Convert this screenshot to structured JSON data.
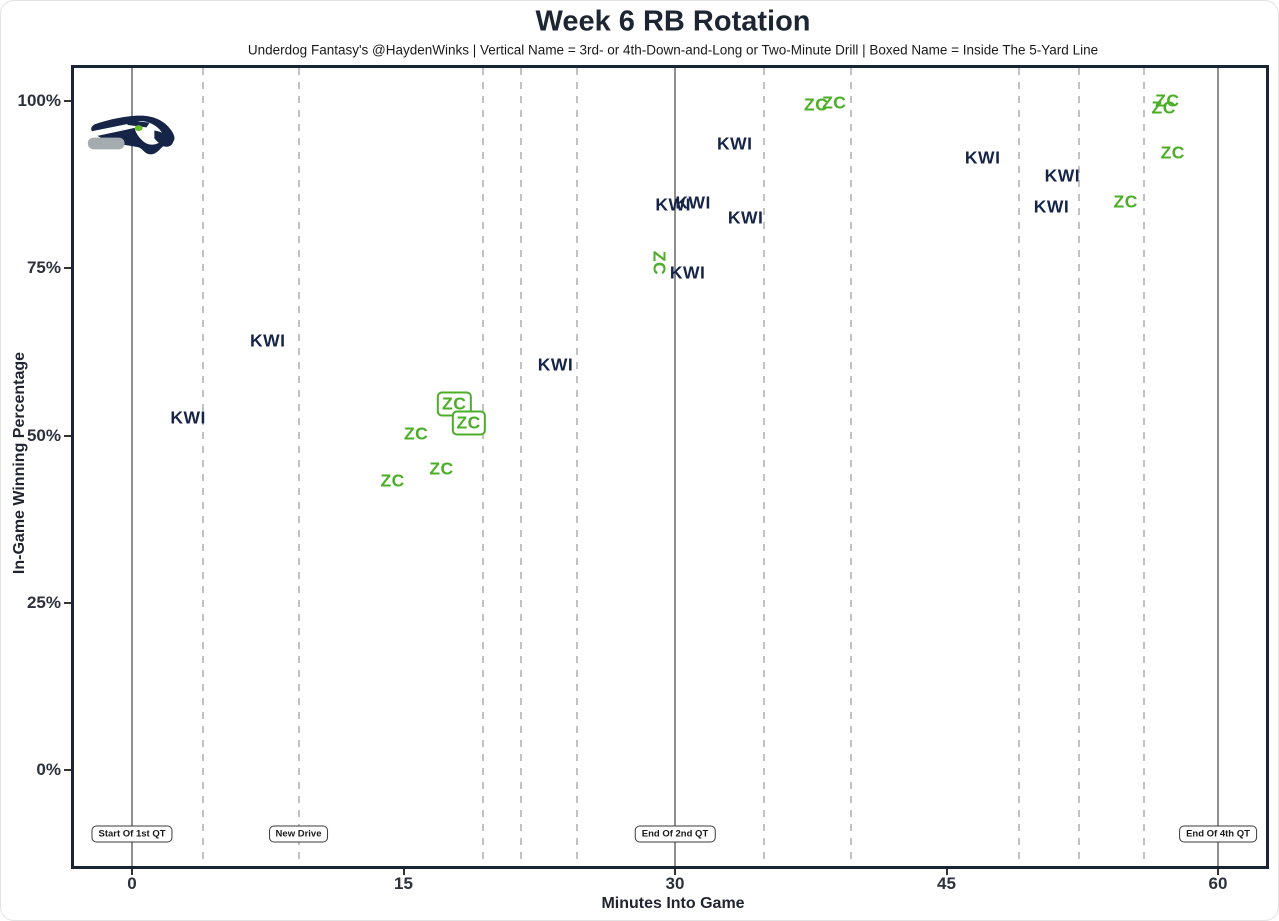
{
  "title": "Week 6 RB Rotation",
  "subtitle": "Underdog Fantasy's @HaydenWinks | Vertical Name = 3rd- or 4th-Down-and-Long or Two-Minute Drill | Boxed Name = Inside The 5-Yard Line",
  "team_logo": "seattle-seahawks-logo",
  "colors": {
    "navy": "#152447",
    "green": "#4bae27",
    "panel_border": "#1b2434",
    "solid_line": "#8f8f8f",
    "dashed_line": "#c2c2c2",
    "logo_gray": "#a5acaf",
    "logo_eye_green": "#69be28"
  },
  "chart_data": {
    "type": "scatter",
    "title": "Week 6 RB Rotation",
    "xlabel": "Minutes Into Game",
    "ylabel": "In-Game Winning Percentage",
    "xlim": [
      -3.4,
      62.8
    ],
    "ylim": [
      -14.8,
      105.4
    ],
    "grid": "vertical-only",
    "legend_position": "none",
    "x_ticks": [
      {
        "label": "0",
        "value": 0
      },
      {
        "label": "15",
        "value": 15
      },
      {
        "label": "30",
        "value": 30
      },
      {
        "label": "45",
        "value": 45
      },
      {
        "label": "60",
        "value": 60
      }
    ],
    "y_ticks": [
      {
        "label": "0%",
        "value": 0
      },
      {
        "label": "25%",
        "value": 25
      },
      {
        "label": "50%",
        "value": 50
      },
      {
        "label": "75%",
        "value": 75
      },
      {
        "label": "100%",
        "value": 100
      }
    ],
    "solid_vlines": [
      0,
      30,
      60
    ],
    "dashed_vlines": [
      3.9,
      9.2,
      19.4,
      21.5,
      24.6,
      34.9,
      39.7,
      49.0,
      52.3,
      55.9
    ],
    "series": [
      {
        "name": "KWI",
        "color": "#152447",
        "points": [
          {
            "x": 3.1,
            "y": 52.6
          },
          {
            "x": 7.5,
            "y": 64.1
          },
          {
            "x": 23.4,
            "y": 60.6
          },
          {
            "x": 29.9,
            "y": 84.5
          },
          {
            "x": 31.0,
            "y": 84.8
          },
          {
            "x": 33.3,
            "y": 93.6
          },
          {
            "x": 33.9,
            "y": 82.5
          },
          {
            "x": 30.7,
            "y": 74.3
          },
          {
            "x": 47.0,
            "y": 91.5
          },
          {
            "x": 51.4,
            "y": 88.8
          },
          {
            "x": 50.8,
            "y": 84.2
          }
        ]
      },
      {
        "name": "ZC",
        "color": "#4bae27",
        "points": [
          {
            "x": 14.4,
            "y": 43.2
          },
          {
            "x": 17.1,
            "y": 45.0
          },
          {
            "x": 15.7,
            "y": 50.2
          },
          {
            "x": 17.8,
            "y": 54.7,
            "boxed": true
          },
          {
            "x": 18.6,
            "y": 51.9,
            "boxed": true
          },
          {
            "x": 29.1,
            "y": 75.8,
            "rotated": true
          },
          {
            "x": 37.8,
            "y": 99.4
          },
          {
            "x": 38.8,
            "y": 99.7
          },
          {
            "x": 54.9,
            "y": 84.9
          },
          {
            "x": 57.2,
            "y": 100.0
          },
          {
            "x": 57.0,
            "y": 98.9
          },
          {
            "x": 57.5,
            "y": 92.2
          }
        ]
      }
    ],
    "annotations": [
      {
        "label": "Start Of 1st QT",
        "x": 0,
        "y": -9.6
      },
      {
        "label": "New Drive",
        "x": 9.2,
        "y": -9.6
      },
      {
        "label": "End Of 2nd QT",
        "x": 30,
        "y": -9.6
      },
      {
        "label": "End Of 4th QT",
        "x": 60,
        "y": -9.6
      }
    ]
  }
}
